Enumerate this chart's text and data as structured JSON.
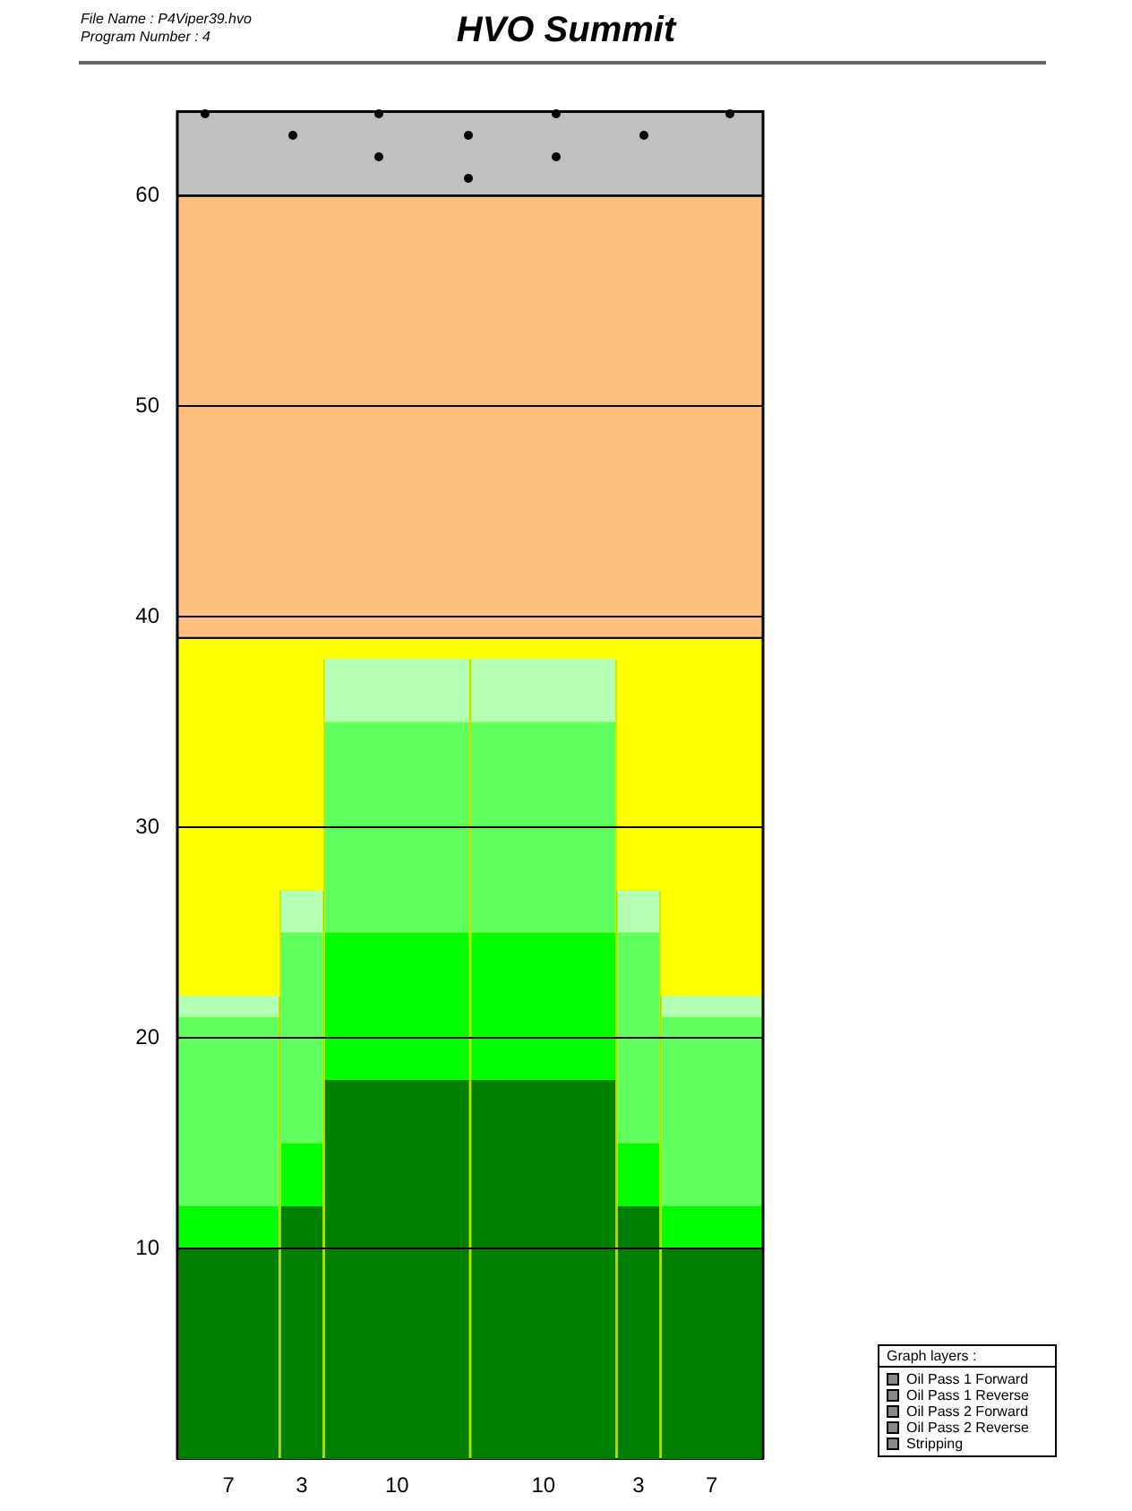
{
  "chart_data": {
    "type": "bar",
    "title": "HVO Summit",
    "stacked": true,
    "categories": [
      "7",
      "3",
      "10",
      "10",
      "3",
      "7"
    ],
    "series": [
      {
        "color": "#008000",
        "values": [
          10,
          12,
          18,
          18,
          12,
          10
        ]
      },
      {
        "color": "#00ff00",
        "values": [
          2,
          3,
          7,
          7,
          3,
          2
        ]
      },
      {
        "color": "#60ff60",
        "values": [
          9,
          10,
          10,
          10,
          10,
          9
        ]
      },
      {
        "color": "#b3ffb3",
        "values": [
          1,
          2,
          3,
          3,
          2,
          1
        ]
      }
    ],
    "bands": [
      {
        "axis": "y",
        "from": 0,
        "to": 39,
        "color": "#ffff00"
      },
      {
        "axis": "y",
        "from": 39,
        "to": 60,
        "color": "#ffbf80"
      },
      {
        "axis": "y",
        "from": 60,
        "to": 64,
        "color": "#c0c0c0"
      }
    ],
    "ylim": [
      0,
      64
    ],
    "yticks": [
      10,
      20,
      30,
      40,
      50,
      60
    ],
    "grid": "y",
    "annotations": [
      "File Name : P4Viper39.hvo",
      "Program Number : 4",
      "Graph layers :",
      "Oil Pass 1 Forward",
      "Oil Pass 1 Reverse",
      "Oil Pass 2 Forward",
      "Oil Pass 2 Reverse",
      "Stripping"
    ]
  }
}
